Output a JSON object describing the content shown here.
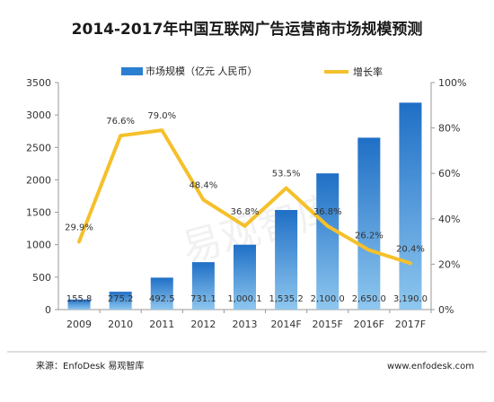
{
  "chart_data": {
    "type": "bar",
    "title": "2014-2017年中国互联网广告运营商市场规模预测",
    "categories": [
      "2009",
      "2010",
      "2011",
      "2012",
      "2013",
      "2014F",
      "2015F",
      "2016F",
      "2017F"
    ],
    "series": [
      {
        "name": "市场规模（亿元 人民币）",
        "type": "bar",
        "axis": "left",
        "color": "#2a7fd0",
        "values": [
          155.8,
          275.2,
          492.5,
          731.1,
          1000.1,
          1535.2,
          2100.0,
          2650.0,
          3190.0
        ],
        "labels": [
          "155.8",
          "275.2",
          "492.5",
          "731.1",
          "1,000.1",
          "1,535.2",
          "2,100.0",
          "2,650.0",
          "3,190.0"
        ]
      },
      {
        "name": "增长率",
        "type": "line",
        "axis": "right",
        "color": "#f5c02a",
        "values": [
          29.9,
          76.6,
          79.0,
          48.4,
          36.8,
          53.5,
          36.8,
          26.2,
          20.4
        ],
        "labels": [
          "29.9%",
          "76.6%",
          "79.0%",
          "48.4%",
          "36.8%",
          "53.5%",
          "36.8%",
          "26.2%",
          "20.4%"
        ]
      }
    ],
    "y_left": {
      "min": 0,
      "max": 3500,
      "ticks": [
        "0",
        "500",
        "1000",
        "1500",
        "2000",
        "2500",
        "3000",
        "3500"
      ]
    },
    "y_right": {
      "min": 0,
      "max": 100,
      "ticks": [
        "0%",
        "20%",
        "40%",
        "60%",
        "80%",
        "100%"
      ]
    },
    "legend": "top",
    "grid": false
  },
  "footer": {
    "source": "来源：EnfoDesk 易观智库",
    "url": "www.enfodesk.com"
  },
  "watermark": "易观智库"
}
